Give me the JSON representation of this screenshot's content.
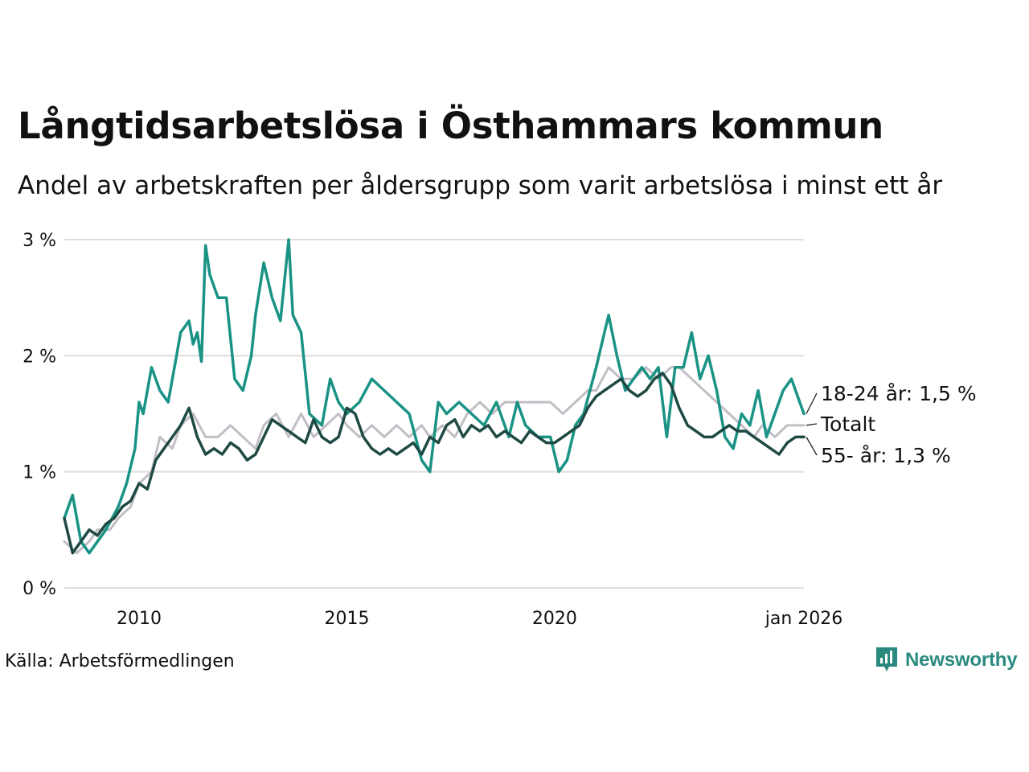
{
  "header": {
    "title": "Långtidsarbetslösa i Östhammars kommun",
    "subtitle": "Andel av arbetskraften per åldersgrupp som varit arbetslösa i minst ett år"
  },
  "footer": {
    "source": "Källa: Arbetsförmedlingen",
    "brand": "Newsworthy"
  },
  "colors": {
    "youth": "#1a9385",
    "total": "#c2bec6",
    "older": "#1f4a44",
    "grid": "#dedede"
  },
  "chart_data": {
    "type": "line",
    "title": "Långtidsarbetslösa i Östhammars kommun",
    "xlabel": "",
    "ylabel": "",
    "xlim": [
      2008.2,
      2026.0
    ],
    "ylim": [
      0,
      3
    ],
    "y_ticks": [
      {
        "value": 0,
        "label": "0 %"
      },
      {
        "value": 1,
        "label": "1 %"
      },
      {
        "value": 2,
        "label": "2 %"
      },
      {
        "value": 3,
        "label": "3 %"
      }
    ],
    "x_ticks": [
      {
        "value": 2010,
        "label": "2010"
      },
      {
        "value": 2015,
        "label": "2015"
      },
      {
        "value": 2020,
        "label": "2020"
      },
      {
        "value": 2026,
        "label": "jan 2026"
      }
    ],
    "series": [
      {
        "name": "Totalt",
        "label": "Totalt",
        "color_key": "total",
        "x": [
          2008.2,
          2008.5,
          2008.8,
          2009.0,
          2009.3,
          2009.5,
          2009.8,
          2010.0,
          2010.3,
          2010.5,
          2010.8,
          2011.0,
          2011.3,
          2011.6,
          2011.9,
          2012.2,
          2012.5,
          2012.8,
          2013.0,
          2013.3,
          2013.6,
          2013.9,
          2014.2,
          2014.5,
          2014.8,
          2015.0,
          2015.3,
          2015.6,
          2015.9,
          2016.2,
          2016.5,
          2016.8,
          2017.0,
          2017.3,
          2017.6,
          2017.9,
          2018.2,
          2018.5,
          2018.8,
          2019.0,
          2019.3,
          2019.6,
          2019.9,
          2020.2,
          2020.5,
          2020.8,
          2021.0,
          2021.3,
          2021.6,
          2021.9,
          2022.2,
          2022.5,
          2022.8,
          2023.0,
          2023.3,
          2023.6,
          2023.9,
          2024.2,
          2024.5,
          2024.8,
          2025.0,
          2025.3,
          2025.6,
          2025.8,
          2026.0
        ],
        "values": [
          0.4,
          0.3,
          0.4,
          0.5,
          0.5,
          0.6,
          0.7,
          0.9,
          1.0,
          1.3,
          1.2,
          1.4,
          1.5,
          1.3,
          1.3,
          1.4,
          1.3,
          1.2,
          1.4,
          1.5,
          1.3,
          1.5,
          1.3,
          1.4,
          1.5,
          1.4,
          1.3,
          1.4,
          1.3,
          1.4,
          1.3,
          1.4,
          1.3,
          1.4,
          1.3,
          1.5,
          1.6,
          1.5,
          1.6,
          1.6,
          1.6,
          1.6,
          1.6,
          1.5,
          1.6,
          1.7,
          1.7,
          1.9,
          1.8,
          1.8,
          1.9,
          1.8,
          1.9,
          1.9,
          1.8,
          1.7,
          1.6,
          1.5,
          1.4,
          1.3,
          1.4,
          1.3,
          1.4,
          1.4,
          1.4
        ]
      },
      {
        "name": "18-24 år",
        "label": "18-24 år: 1,5 %",
        "color_key": "youth",
        "x": [
          2008.2,
          2008.4,
          2008.6,
          2008.8,
          2009.0,
          2009.2,
          2009.5,
          2009.7,
          2009.9,
          2010.0,
          2010.1,
          2010.3,
          2010.5,
          2010.7,
          2010.9,
          2011.0,
          2011.2,
          2011.3,
          2011.4,
          2011.5,
          2011.6,
          2011.7,
          2011.9,
          2012.1,
          2012.3,
          2012.5,
          2012.7,
          2012.8,
          2013.0,
          2013.2,
          2013.4,
          2013.6,
          2013.7,
          2013.9,
          2014.1,
          2014.4,
          2014.6,
          2014.8,
          2015.0,
          2015.3,
          2015.6,
          2015.9,
          2016.2,
          2016.5,
          2016.8,
          2017.0,
          2017.2,
          2017.4,
          2017.7,
          2018.0,
          2018.3,
          2018.6,
          2018.9,
          2019.1,
          2019.3,
          2019.6,
          2019.9,
          2020.1,
          2020.3,
          2020.5,
          2020.7,
          2021.0,
          2021.2,
          2021.3,
          2021.5,
          2021.7,
          2021.9,
          2022.1,
          2022.3,
          2022.5,
          2022.7,
          2022.9,
          2023.1,
          2023.3,
          2023.5,
          2023.7,
          2023.9,
          2024.1,
          2024.3,
          2024.5,
          2024.7,
          2024.9,
          2025.1,
          2025.3,
          2025.5,
          2025.7,
          2025.9,
          2026.0
        ],
        "values": [
          0.6,
          0.8,
          0.4,
          0.3,
          0.4,
          0.5,
          0.7,
          0.9,
          1.2,
          1.6,
          1.5,
          1.9,
          1.7,
          1.6,
          2.0,
          2.2,
          2.3,
          2.1,
          2.2,
          1.95,
          2.95,
          2.7,
          2.5,
          2.5,
          1.8,
          1.7,
          2.0,
          2.35,
          2.8,
          2.5,
          2.3,
          3.0,
          2.35,
          2.2,
          1.5,
          1.4,
          1.8,
          1.6,
          1.5,
          1.6,
          1.8,
          1.7,
          1.6,
          1.5,
          1.1,
          1.0,
          1.6,
          1.5,
          1.6,
          1.5,
          1.4,
          1.6,
          1.3,
          1.6,
          1.4,
          1.3,
          1.3,
          1.0,
          1.1,
          1.4,
          1.5,
          1.9,
          2.2,
          2.35,
          2.0,
          1.7,
          1.8,
          1.9,
          1.8,
          1.9,
          1.3,
          1.9,
          1.9,
          2.2,
          1.8,
          2.0,
          1.7,
          1.3,
          1.2,
          1.5,
          1.4,
          1.7,
          1.3,
          1.5,
          1.7,
          1.8,
          1.6,
          1.5
        ]
      },
      {
        "name": "55- år",
        "label": "55- år: 1,3 %",
        "color_key": "older",
        "x": [
          2008.2,
          2008.4,
          2008.6,
          2008.8,
          2009.0,
          2009.2,
          2009.4,
          2009.6,
          2009.8,
          2010.0,
          2010.2,
          2010.4,
          2010.6,
          2010.8,
          2011.0,
          2011.2,
          2011.4,
          2011.6,
          2011.8,
          2012.0,
          2012.2,
          2012.4,
          2012.6,
          2012.8,
          2013.0,
          2013.2,
          2013.4,
          2013.6,
          2013.8,
          2014.0,
          2014.2,
          2014.4,
          2014.6,
          2014.8,
          2015.0,
          2015.2,
          2015.4,
          2015.6,
          2015.8,
          2016.0,
          2016.2,
          2016.4,
          2016.6,
          2016.8,
          2017.0,
          2017.2,
          2017.4,
          2017.6,
          2017.8,
          2018.0,
          2018.2,
          2018.4,
          2018.6,
          2018.8,
          2019.0,
          2019.2,
          2019.4,
          2019.6,
          2019.8,
          2020.0,
          2020.2,
          2020.4,
          2020.6,
          2020.8,
          2021.0,
          2021.2,
          2021.4,
          2021.6,
          2021.8,
          2022.0,
          2022.2,
          2022.4,
          2022.6,
          2022.8,
          2023.0,
          2023.2,
          2023.4,
          2023.6,
          2023.8,
          2024.0,
          2024.2,
          2024.4,
          2024.6,
          2024.8,
          2025.0,
          2025.2,
          2025.4,
          2025.6,
          2025.8,
          2026.0
        ],
        "values": [
          0.6,
          0.3,
          0.4,
          0.5,
          0.45,
          0.55,
          0.6,
          0.7,
          0.75,
          0.9,
          0.85,
          1.1,
          1.2,
          1.3,
          1.4,
          1.55,
          1.3,
          1.15,
          1.2,
          1.15,
          1.25,
          1.2,
          1.1,
          1.15,
          1.3,
          1.45,
          1.4,
          1.35,
          1.3,
          1.25,
          1.45,
          1.3,
          1.25,
          1.3,
          1.55,
          1.5,
          1.3,
          1.2,
          1.15,
          1.2,
          1.15,
          1.2,
          1.25,
          1.15,
          1.3,
          1.25,
          1.4,
          1.45,
          1.3,
          1.4,
          1.35,
          1.4,
          1.3,
          1.35,
          1.3,
          1.25,
          1.35,
          1.3,
          1.25,
          1.25,
          1.3,
          1.35,
          1.4,
          1.55,
          1.65,
          1.7,
          1.75,
          1.8,
          1.7,
          1.65,
          1.7,
          1.8,
          1.85,
          1.75,
          1.55,
          1.4,
          1.35,
          1.3,
          1.3,
          1.35,
          1.4,
          1.35,
          1.35,
          1.3,
          1.25,
          1.2,
          1.15,
          1.25,
          1.3,
          1.3
        ]
      }
    ]
  }
}
